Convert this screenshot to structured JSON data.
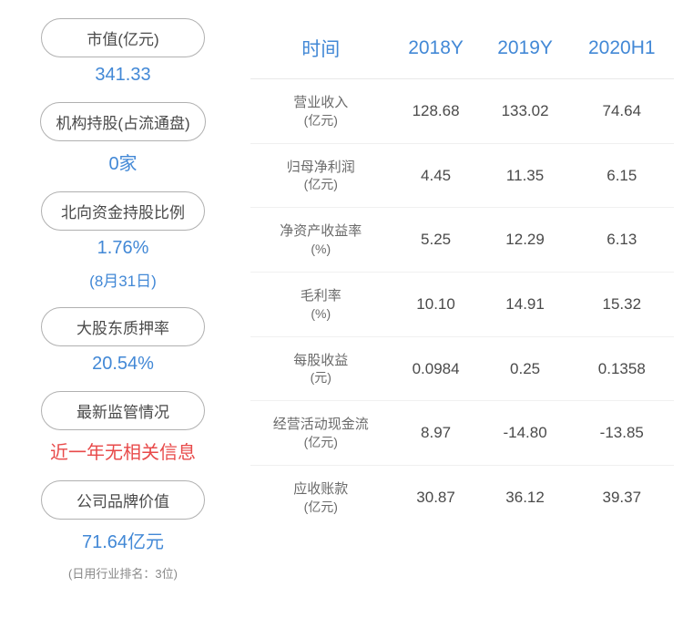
{
  "left": {
    "items": [
      {
        "label": "市值(亿元)",
        "value": "341.33",
        "subtext": null,
        "color": "blue",
        "note": null
      },
      {
        "label": "机构持股(占流通盘)",
        "value": "0家",
        "subtext": null,
        "color": "blue",
        "note": null
      },
      {
        "label": "北向资金持股比例",
        "value": "1.76%",
        "subtext": "(8月31日)",
        "color": "blue",
        "note": null
      },
      {
        "label": "大股东质押率",
        "value": "20.54%",
        "subtext": null,
        "color": "blue",
        "note": null
      },
      {
        "label": "最新监管情况",
        "value": "近一年无相关信息",
        "subtext": null,
        "color": "red",
        "note": null
      },
      {
        "label": "公司品牌价值",
        "value": "71.64亿元",
        "subtext": null,
        "color": "blue",
        "note": "(日用行业排名：3位)"
      }
    ]
  },
  "table": {
    "headers": [
      "时间",
      "2018Y",
      "2019Y",
      "2020H1"
    ],
    "header_color": "#4288d6",
    "rows": [
      {
        "label": "营业收入",
        "unit": "(亿元)",
        "vals": [
          "128.68",
          "133.02",
          "74.64"
        ]
      },
      {
        "label": "归母净利润",
        "unit": "(亿元)",
        "vals": [
          "4.45",
          "11.35",
          "6.15"
        ]
      },
      {
        "label": "净资产收益率",
        "unit": "(%)",
        "vals": [
          "5.25",
          "12.29",
          "6.13"
        ]
      },
      {
        "label": "毛利率",
        "unit": "(%)",
        "vals": [
          "10.10",
          "14.91",
          "15.32"
        ]
      },
      {
        "label": "每股收益",
        "unit": "(元)",
        "vals": [
          "0.0984",
          "0.25",
          "0.1358"
        ]
      },
      {
        "label": "经营活动现金流",
        "unit": "(亿元)",
        "vals": [
          "8.97",
          "-14.80",
          "-13.85"
        ]
      },
      {
        "label": "应收账款",
        "unit": "(亿元)",
        "vals": [
          "30.87",
          "36.12",
          "39.37"
        ]
      }
    ]
  },
  "colors": {
    "blue": "#4288d6",
    "red": "#e84a4a",
    "border": "#b0b0b0",
    "text": "#4a4a4a"
  }
}
